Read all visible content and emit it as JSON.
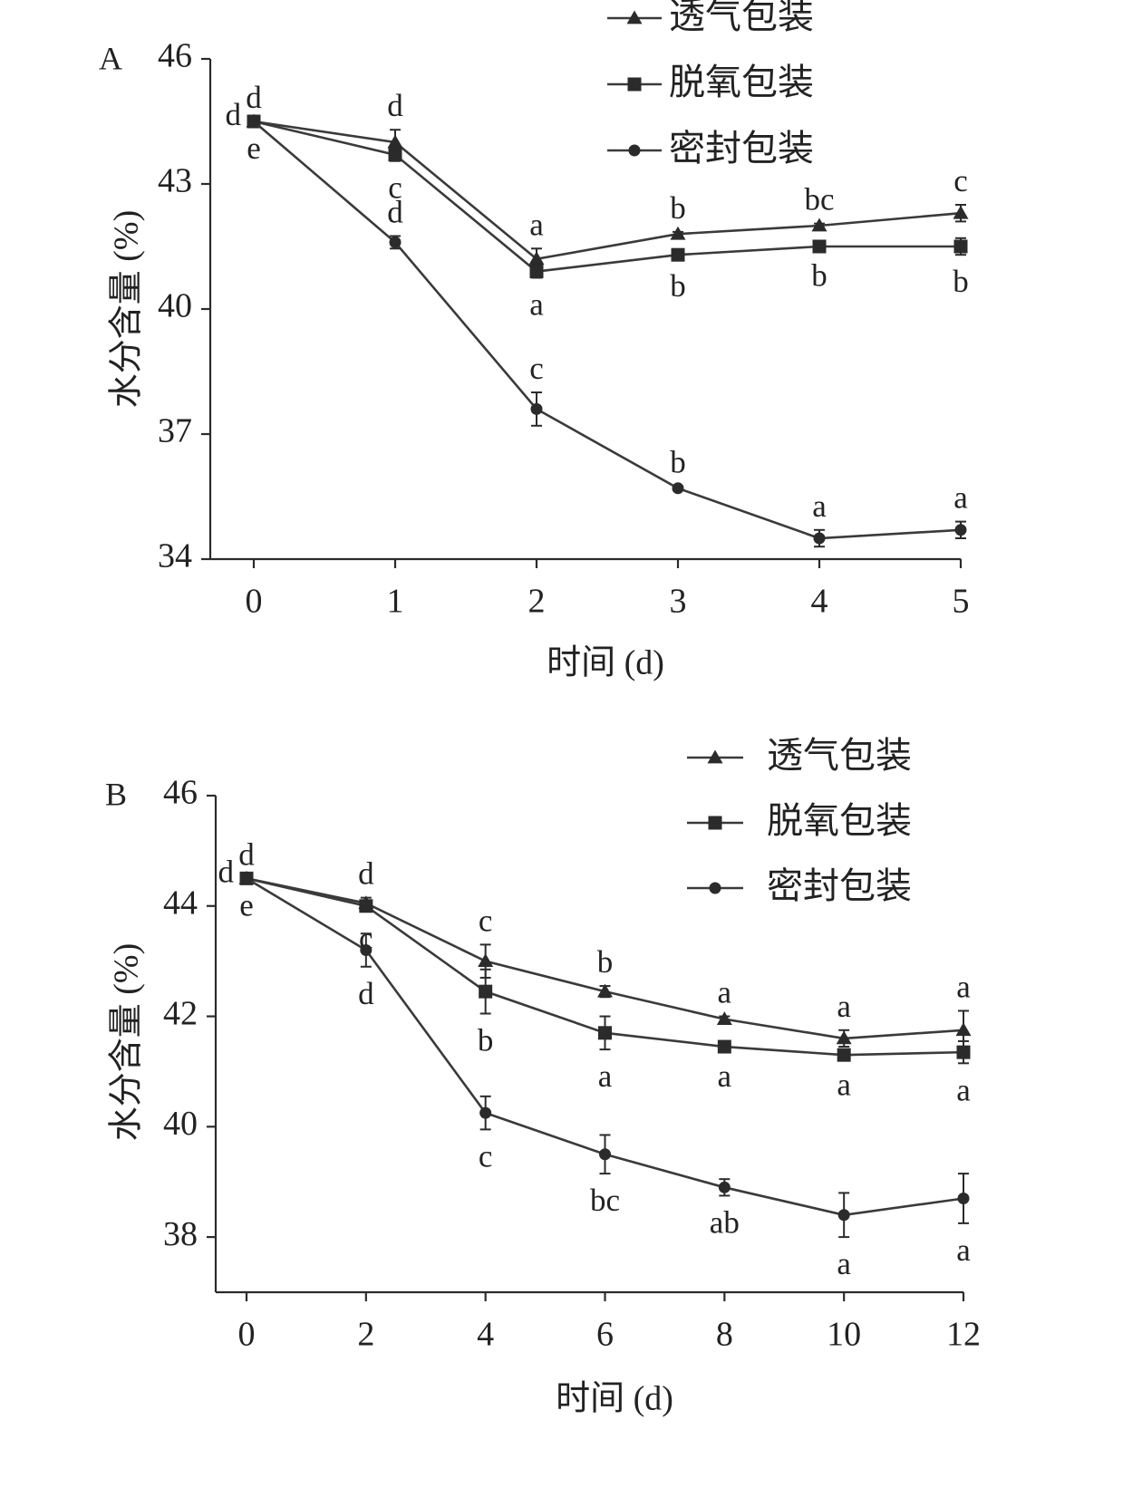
{
  "colors": {
    "ink": "#2b2b2b",
    "line": "#3a3a3a"
  },
  "legend": [
    {
      "label": "透气包装",
      "marker": "triangle"
    },
    {
      "label": "脱氧包装",
      "marker": "square"
    },
    {
      "label": "密封包装",
      "marker": "circle"
    }
  ],
  "chart_data": [
    {
      "panel": "A",
      "type": "line",
      "xlabel": "时间 (d)",
      "ylabel": "水分含量 (%)",
      "x": [
        0,
        1,
        2,
        3,
        4,
        5
      ],
      "xlim": [
        0,
        5
      ],
      "ylim": [
        34,
        46
      ],
      "yticks": [
        34,
        37,
        40,
        43,
        46
      ],
      "grid": false,
      "legend_position": "top-right",
      "series": [
        {
          "name": "透气包装",
          "marker": "triangle",
          "values": [
            44.5,
            44.0,
            41.2,
            41.8,
            42.0,
            42.3
          ],
          "errors": [
            0,
            0.3,
            0.25,
            0.05,
            0.05,
            0.2
          ],
          "letters": [
            "d",
            "d",
            "a",
            "b",
            "bc",
            "c"
          ],
          "letter_side": [
            "above",
            "above",
            "above",
            "above",
            "above",
            "above"
          ]
        },
        {
          "name": "脱氧包装",
          "marker": "square",
          "values": [
            44.5,
            43.7,
            40.9,
            41.3,
            41.5,
            41.5
          ],
          "errors": [
            0,
            0.15,
            0.15,
            0.1,
            0.05,
            0.2
          ],
          "letters": [
            "d",
            "c",
            "a",
            "b",
            "b",
            "b"
          ],
          "letter_side": [
            "left",
            "below",
            "below",
            "below",
            "below",
            "below"
          ]
        },
        {
          "name": "密封包装",
          "marker": "circle",
          "values": [
            44.5,
            41.6,
            37.6,
            35.7,
            34.5,
            34.7
          ],
          "errors": [
            0,
            0.15,
            0.4,
            0.05,
            0.2,
            0.2
          ],
          "letters": [
            "e",
            "d",
            "c",
            "b",
            "a",
            "a"
          ],
          "letter_side": [
            "below",
            "above",
            "above",
            "above",
            "above",
            "above"
          ]
        }
      ]
    },
    {
      "panel": "B",
      "type": "line",
      "xlabel": "时间 (d)",
      "ylabel": "水分含量 (%)",
      "x": [
        0,
        2,
        4,
        6,
        8,
        10,
        12
      ],
      "xlim": [
        0,
        12
      ],
      "ylim": [
        37,
        46
      ],
      "yticks": [
        38,
        40,
        42,
        44,
        46
      ],
      "grid": false,
      "legend_position": "top-right",
      "series": [
        {
          "name": "透气包装",
          "marker": "triangle",
          "values": [
            44.5,
            44.05,
            43.0,
            42.45,
            41.95,
            41.6,
            41.75
          ],
          "errors": [
            0,
            0.1,
            0.3,
            0.1,
            0.05,
            0.15,
            0.35
          ],
          "letters": [
            "d",
            "d",
            "c",
            "b",
            "a",
            "a",
            "a"
          ],
          "letter_side": [
            "above",
            "above",
            "above",
            "above",
            "above",
            "above",
            "above"
          ]
        },
        {
          "name": "脱氧包装",
          "marker": "square",
          "values": [
            44.5,
            44.0,
            42.45,
            41.7,
            41.45,
            41.3,
            41.35
          ],
          "errors": [
            0,
            0.1,
            0.4,
            0.3,
            0.05,
            0.05,
            0.2
          ],
          "letters": [
            "d",
            "c",
            "b",
            "a",
            "a",
            "a",
            "a"
          ],
          "letter_side": [
            "left",
            "below",
            "below",
            "below",
            "below",
            "below",
            "below"
          ]
        },
        {
          "name": "密封包装",
          "marker": "circle",
          "values": [
            44.5,
            43.2,
            40.25,
            39.5,
            38.9,
            38.4,
            38.7
          ],
          "errors": [
            0,
            0.3,
            0.3,
            0.35,
            0.15,
            0.4,
            0.45
          ],
          "letters": [
            "e",
            "d",
            "c",
            "bc",
            "ab",
            "a",
            "a"
          ],
          "letter_side": [
            "below",
            "below",
            "below",
            "below",
            "below",
            "below",
            "below"
          ]
        }
      ]
    }
  ]
}
